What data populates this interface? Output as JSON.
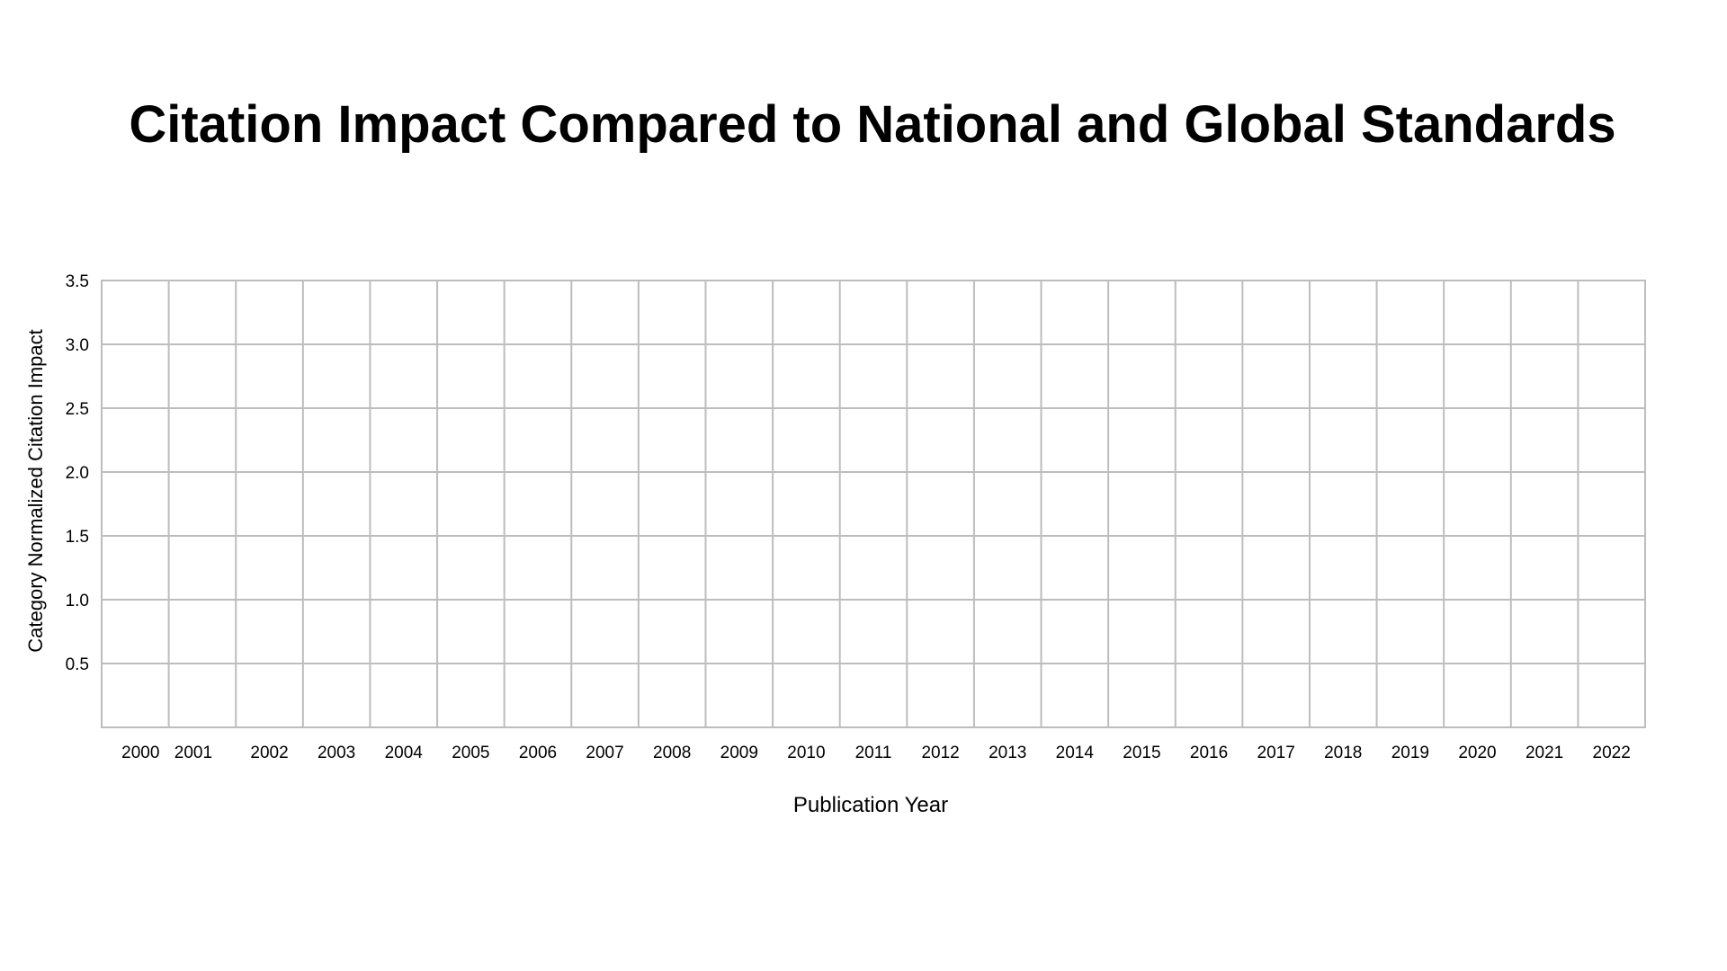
{
  "chart_data": {
    "type": "line",
    "title": "Citation Impact Compared to National and Global Standards",
    "xlabel": "Publication Year",
    "ylabel": "Category Normalized Citation Impact",
    "x": [
      "2000",
      "2001",
      "2002",
      "2003",
      "2004",
      "2005",
      "2006",
      "2007",
      "2008",
      "2009",
      "2010",
      "2011",
      "2012",
      "2013",
      "2014",
      "2015",
      "2016",
      "2017",
      "2018",
      "2019",
      "2020",
      "2021",
      "2022"
    ],
    "yticks": [
      "0.5",
      "1.0",
      "1.5",
      "2.0",
      "2.5",
      "3.0",
      "3.5"
    ],
    "ylim": [
      0,
      3.5
    ],
    "series": [],
    "grid": true,
    "grid_color": "#bdbdbd",
    "legend": null
  }
}
